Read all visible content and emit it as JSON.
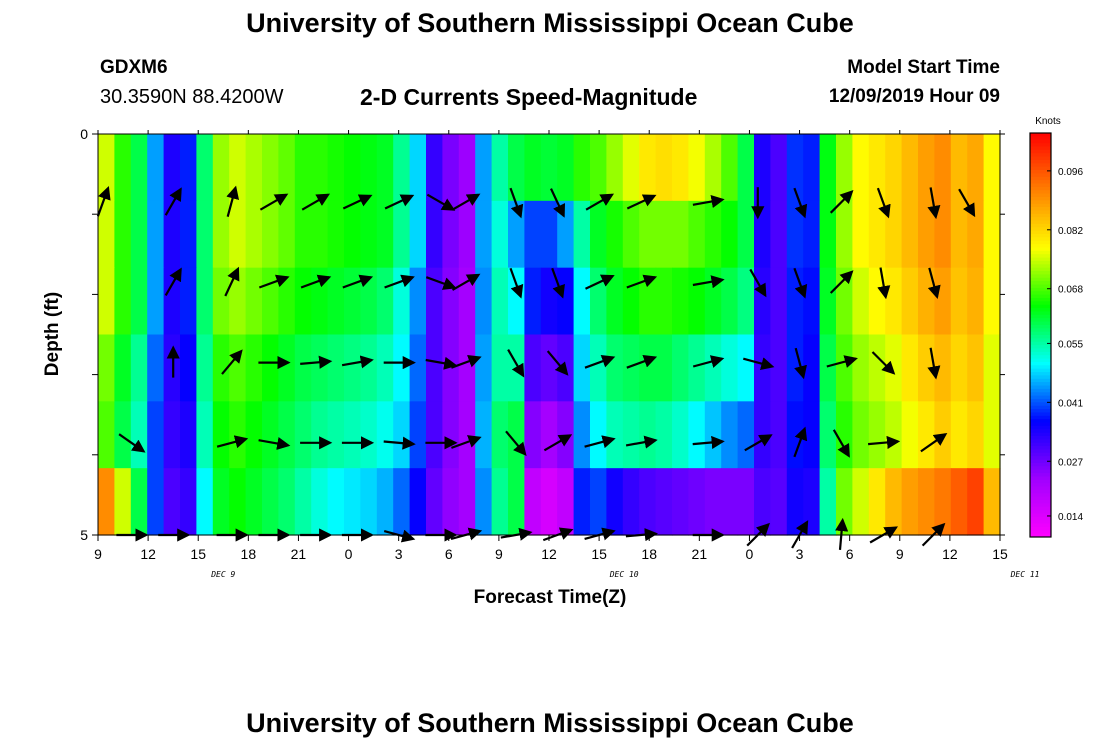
{
  "header": {
    "title": "University of Southern Mississippi Ocean Cube",
    "station": "GDXM6",
    "coords": "30.3590N 88.4200W",
    "subtitle": "2-D Currents Speed-Magnitude",
    "model_start_label": "Model Start Time",
    "model_start_value": "12/09/2019 Hour 09"
  },
  "footer": {
    "title": "University of Southern Mississippi Ocean Cube"
  },
  "chart_data": {
    "type": "heatmap",
    "xlabel": "Forecast Time(Z)",
    "ylabel": "Depth (ft)",
    "x_tick_labels": [
      "9",
      "12",
      "15",
      "18",
      "21",
      "0",
      "3",
      "6",
      "9",
      "12",
      "15",
      "18",
      "21",
      "0",
      "3",
      "6",
      "9",
      "12",
      "15"
    ],
    "x_hours_start": 9,
    "x_hours_end": 63,
    "date_labels": [
      {
        "label": "DEC 9",
        "hour": 16.5
      },
      {
        "label": "DEC 10",
        "hour": 40.5
      },
      {
        "label": "DEC 11",
        "hour": 64.5
      }
    ],
    "y_tick_labels": [
      "0",
      "5"
    ],
    "ylim": [
      0,
      5
    ],
    "colorbar": {
      "unit": "Knots",
      "ticks": [
        0.014,
        0.027,
        0.041,
        0.055,
        0.068,
        0.082,
        0.096
      ],
      "range": [
        0.009,
        0.105
      ],
      "colors": [
        "#ff00ff",
        "#a000ff",
        "#0000ff",
        "#00ffff",
        "#00ff00",
        "#ffff00",
        "#ff8000",
        "#ff0000"
      ]
    },
    "speed_layers": [
      [
        0.075,
        0.066,
        0.06,
        0.045,
        0.034,
        0.038,
        0.058,
        0.072,
        0.075,
        0.073,
        0.071,
        0.069,
        0.066,
        0.066,
        0.065,
        0.064,
        0.063,
        0.062,
        0.056,
        0.048,
        0.032,
        0.026,
        0.023,
        0.045,
        0.055,
        0.06,
        0.062,
        0.061,
        0.062,
        0.066,
        0.068,
        0.072,
        0.076,
        0.08,
        0.081,
        0.08,
        0.077,
        0.073,
        0.068,
        0.06,
        0.034,
        0.03,
        0.039,
        0.038,
        0.063,
        0.072,
        0.078,
        0.08,
        0.082,
        0.085,
        0.088,
        0.09,
        0.085,
        0.087,
        0.078
      ],
      [
        0.075,
        0.066,
        0.06,
        0.045,
        0.034,
        0.038,
        0.058,
        0.072,
        0.075,
        0.073,
        0.071,
        0.069,
        0.066,
        0.066,
        0.065,
        0.064,
        0.063,
        0.062,
        0.056,
        0.048,
        0.032,
        0.026,
        0.023,
        0.045,
        0.052,
        0.045,
        0.04,
        0.04,
        0.045,
        0.055,
        0.062,
        0.065,
        0.068,
        0.07,
        0.07,
        0.07,
        0.068,
        0.066,
        0.064,
        0.06,
        0.034,
        0.03,
        0.039,
        0.038,
        0.063,
        0.072,
        0.078,
        0.08,
        0.082,
        0.085,
        0.088,
        0.09,
        0.085,
        0.087,
        0.078
      ],
      [
        0.075,
        0.066,
        0.06,
        0.045,
        0.034,
        0.038,
        0.058,
        0.07,
        0.072,
        0.07,
        0.068,
        0.066,
        0.064,
        0.063,
        0.062,
        0.061,
        0.06,
        0.058,
        0.052,
        0.044,
        0.03,
        0.025,
        0.022,
        0.044,
        0.054,
        0.05,
        0.038,
        0.035,
        0.036,
        0.05,
        0.058,
        0.062,
        0.064,
        0.066,
        0.066,
        0.065,
        0.064,
        0.062,
        0.06,
        0.057,
        0.033,
        0.03,
        0.038,
        0.037,
        0.062,
        0.07,
        0.075,
        0.078,
        0.08,
        0.083,
        0.086,
        0.088,
        0.084,
        0.086,
        0.078
      ],
      [
        0.07,
        0.062,
        0.056,
        0.042,
        0.033,
        0.036,
        0.056,
        0.066,
        0.068,
        0.066,
        0.064,
        0.062,
        0.06,
        0.059,
        0.058,
        0.057,
        0.056,
        0.054,
        0.05,
        0.042,
        0.03,
        0.025,
        0.022,
        0.045,
        0.055,
        0.055,
        0.03,
        0.028,
        0.03,
        0.048,
        0.054,
        0.058,
        0.059,
        0.06,
        0.06,
        0.058,
        0.056,
        0.054,
        0.052,
        0.05,
        0.032,
        0.03,
        0.038,
        0.036,
        0.06,
        0.068,
        0.072,
        0.074,
        0.076,
        0.08,
        0.083,
        0.085,
        0.082,
        0.084,
        0.076
      ],
      [
        0.068,
        0.06,
        0.054,
        0.04,
        0.032,
        0.034,
        0.054,
        0.064,
        0.066,
        0.064,
        0.062,
        0.06,
        0.058,
        0.056,
        0.055,
        0.054,
        0.053,
        0.051,
        0.048,
        0.04,
        0.03,
        0.025,
        0.022,
        0.046,
        0.058,
        0.06,
        0.025,
        0.022,
        0.025,
        0.044,
        0.05,
        0.054,
        0.055,
        0.056,
        0.055,
        0.053,
        0.05,
        0.047,
        0.044,
        0.042,
        0.032,
        0.03,
        0.037,
        0.036,
        0.058,
        0.066,
        0.07,
        0.072,
        0.074,
        0.077,
        0.08,
        0.083,
        0.08,
        0.082,
        0.076
      ],
      [
        0.09,
        0.075,
        0.06,
        0.04,
        0.03,
        0.032,
        0.05,
        0.062,
        0.064,
        0.062,
        0.06,
        0.058,
        0.055,
        0.052,
        0.05,
        0.049,
        0.048,
        0.046,
        0.042,
        0.036,
        0.028,
        0.024,
        0.022,
        0.044,
        0.056,
        0.06,
        0.018,
        0.015,
        0.018,
        0.038,
        0.04,
        0.035,
        0.032,
        0.03,
        0.029,
        0.028,
        0.027,
        0.026,
        0.026,
        0.026,
        0.03,
        0.029,
        0.035,
        0.034,
        0.055,
        0.07,
        0.075,
        0.08,
        0.085,
        0.088,
        0.09,
        0.092,
        0.095,
        0.098,
        0.085
      ]
    ],
    "vector_columns_hour": [
      9.3,
      11,
      13.5,
      17,
      19.5,
      22,
      24.5,
      27,
      29.5,
      31,
      34,
      36.5,
      39,
      41.5,
      45.5,
      48.5,
      51,
      53.5,
      56,
      59,
      61,
      63.5,
      66,
      69.5
    ],
    "vector_rows_depth": [
      0.85,
      1.85,
      2.85,
      3.85,
      5.0
    ],
    "vector_angles_deg": [
      [
        70,
        null,
        60,
        75,
        30,
        30,
        25,
        25,
        -30,
        30,
        -70,
        -65,
        30,
        25,
        10,
        -90,
        -70,
        45,
        -70,
        -80,
        -60,
        null,
        null,
        null
      ],
      [
        null,
        null,
        60,
        65,
        20,
        20,
        20,
        20,
        -20,
        30,
        -70,
        -70,
        25,
        20,
        10,
        -60,
        -70,
        45,
        -80,
        -75,
        null,
        null,
        null,
        null
      ],
      [
        null,
        null,
        90,
        50,
        0,
        5,
        10,
        0,
        -10,
        20,
        -60,
        -50,
        20,
        20,
        15,
        -15,
        -75,
        15,
        -45,
        -80,
        null,
        null,
        null,
        null
      ],
      [
        null,
        -35,
        null,
        15,
        -10,
        0,
        0,
        -5,
        0,
        20,
        -50,
        30,
        15,
        10,
        5,
        30,
        70,
        -60,
        5,
        35,
        null,
        null,
        null,
        null
      ],
      [
        null,
        0,
        0,
        0,
        0,
        0,
        0,
        -15,
        0,
        15,
        10,
        20,
        15,
        5,
        0,
        45,
        60,
        85,
        30,
        45,
        null,
        null,
        null,
        null
      ]
    ]
  }
}
